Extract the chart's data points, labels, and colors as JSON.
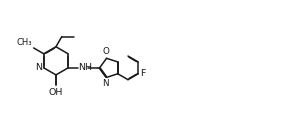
{
  "background": "#ffffff",
  "line_color": "#1a1a1a",
  "line_width": 1.1,
  "font_size": 6.8,
  "dbo": 0.014,
  "fig_w": 2.86,
  "fig_h": 1.23,
  "xlim": [
    0.0,
    8.5
  ],
  "ylim": [
    1.2,
    4.2
  ]
}
